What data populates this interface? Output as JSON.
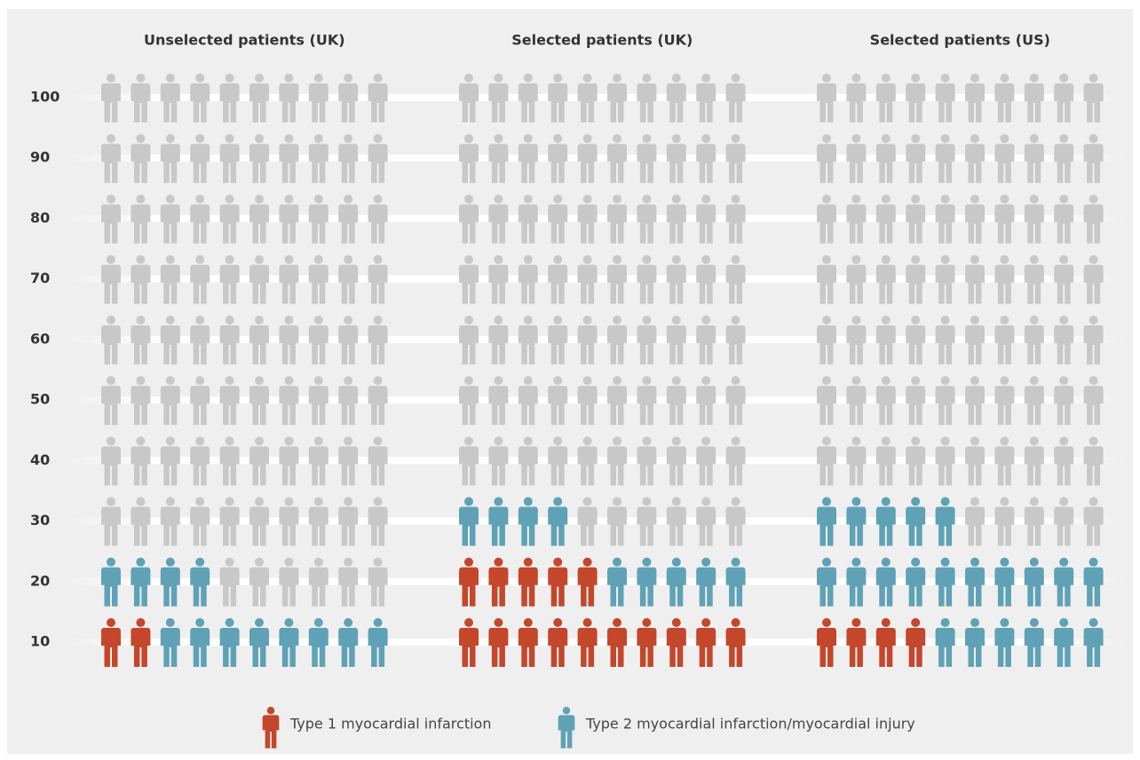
{
  "chart_data": {
    "type": "icon-array",
    "categories": [
      "Unselected patients (UK)",
      "Selected patients (UK)",
      "Selected patients (US)"
    ],
    "series": [
      {
        "name": "Type 1 myocardial infarction",
        "color": "#c4472b",
        "values": [
          2,
          15,
          4
        ]
      },
      {
        "name": "Type 2 myocardial infarction/myocardial injury",
        "color": "#5fa2b6",
        "values": [
          12,
          9,
          21
        ]
      }
    ],
    "rest_color": "#c8c8c8",
    "ylim": [
      0,
      100
    ],
    "yticks": [
      10,
      20,
      30,
      40,
      50,
      60,
      70,
      80,
      90,
      100
    ]
  }
}
